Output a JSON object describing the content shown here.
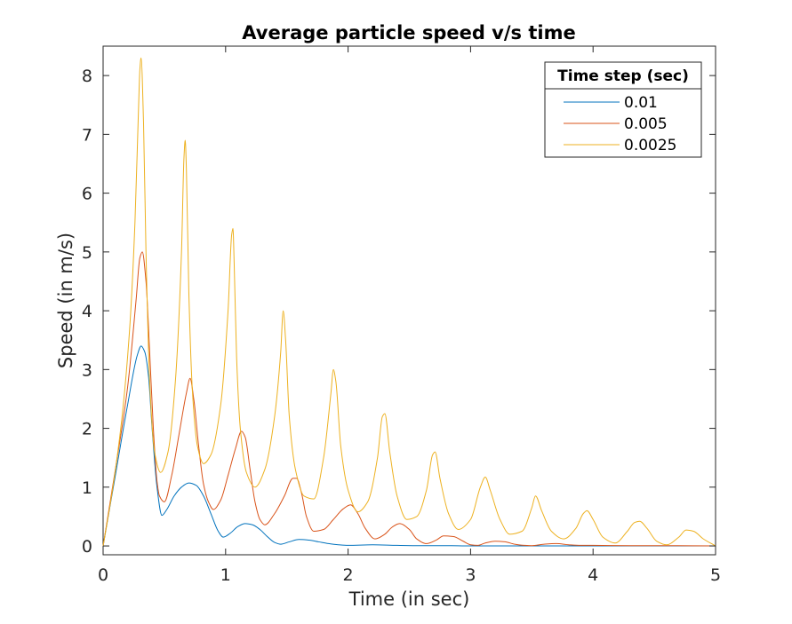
{
  "chart_data": {
    "type": "line",
    "title": "Average particle speed v/s time",
    "xlabel": "Time (in sec)",
    "ylabel": "Speed (in m/s)",
    "xlim": [
      0,
      5
    ],
    "ylim": [
      -0.15,
      8.5
    ],
    "xticks": [
      0,
      1,
      2,
      3,
      4,
      5
    ],
    "yticks": [
      0,
      1,
      2,
      3,
      4,
      5,
      6,
      7,
      8
    ],
    "xtick_labels": [
      "0",
      "1",
      "2",
      "3",
      "4",
      "5"
    ],
    "ytick_labels": [
      "0",
      "1",
      "2",
      "3",
      "4",
      "5",
      "6",
      "7",
      "8"
    ],
    "grid": false,
    "legend": {
      "title": "Time step (sec)",
      "placement": "top-right"
    },
    "series": [
      {
        "name": "0.01",
        "color": "#0072BD",
        "x": [
          0,
          0.1,
          0.2,
          0.28,
          0.31,
          0.34,
          0.37,
          0.4,
          0.44,
          0.48,
          0.52,
          0.58,
          0.64,
          0.7,
          0.76,
          0.82,
          0.88,
          0.94,
          0.98,
          1.04,
          1.1,
          1.16,
          1.22,
          1.28,
          1.34,
          1.4,
          1.45,
          1.52,
          1.6,
          1.68,
          1.76,
          1.84,
          1.92,
          2.0,
          2.2,
          2.4,
          2.6,
          2.8,
          3.0,
          3.5,
          4.0,
          5.0
        ],
        "y": [
          0,
          1.2,
          2.4,
          3.25,
          3.4,
          3.3,
          2.9,
          2.0,
          1.0,
          0.52,
          0.62,
          0.85,
          1.0,
          1.07,
          1.03,
          0.85,
          0.55,
          0.25,
          0.15,
          0.22,
          0.33,
          0.38,
          0.36,
          0.28,
          0.16,
          0.06,
          0.03,
          0.07,
          0.11,
          0.1,
          0.07,
          0.04,
          0.02,
          0.01,
          0.02,
          0.01,
          0.005,
          0.005,
          0,
          0,
          0,
          0
        ]
      },
      {
        "name": "0.005",
        "color": "#D95319",
        "x": [
          0,
          0.1,
          0.2,
          0.27,
          0.3,
          0.32,
          0.35,
          0.38,
          0.41,
          0.44,
          0.46,
          0.5,
          0.56,
          0.62,
          0.68,
          0.71,
          0.74,
          0.78,
          0.82,
          0.86,
          0.9,
          0.96,
          1.02,
          1.08,
          1.13,
          1.16,
          1.2,
          1.24,
          1.28,
          1.32,
          1.4,
          1.48,
          1.55,
          1.58,
          1.62,
          1.66,
          1.72,
          1.8,
          1.88,
          1.96,
          2.02,
          2.08,
          2.14,
          2.22,
          2.3,
          2.36,
          2.42,
          2.5,
          2.56,
          2.64,
          2.72,
          2.78,
          2.86,
          2.94,
          3.0,
          3.06,
          3.12,
          3.2,
          3.28,
          3.36,
          3.44,
          3.5,
          3.6,
          3.7,
          3.8,
          3.9,
          4.0,
          4.3,
          4.6,
          5.0
        ],
        "y": [
          0,
          1.3,
          2.7,
          4.2,
          4.9,
          5.0,
          4.5,
          3.3,
          2.0,
          1.1,
          0.85,
          0.75,
          1.2,
          1.9,
          2.6,
          2.85,
          2.5,
          1.7,
          1.05,
          0.75,
          0.62,
          0.78,
          1.2,
          1.65,
          1.95,
          1.85,
          1.3,
          0.75,
          0.45,
          0.36,
          0.55,
          0.85,
          1.15,
          1.15,
          0.9,
          0.5,
          0.25,
          0.28,
          0.45,
          0.63,
          0.7,
          0.55,
          0.3,
          0.12,
          0.2,
          0.32,
          0.38,
          0.28,
          0.12,
          0.04,
          0.1,
          0.17,
          0.16,
          0.08,
          0.02,
          0.01,
          0.05,
          0.08,
          0.07,
          0.03,
          0.01,
          0.005,
          0.03,
          0.04,
          0.02,
          0.01,
          0.01,
          0.005,
          0.005,
          0
        ]
      },
      {
        "name": "0.0025",
        "color": "#EDB120",
        "x": [
          0,
          0.08,
          0.16,
          0.22,
          0.26,
          0.29,
          0.3,
          0.31,
          0.33,
          0.35,
          0.38,
          0.42,
          0.47,
          0.53,
          0.59,
          0.64,
          0.66,
          0.67,
          0.68,
          0.7,
          0.73,
          0.77,
          0.82,
          0.88,
          0.96,
          1.02,
          1.05,
          1.06,
          1.07,
          1.09,
          1.12,
          1.17,
          1.24,
          1.32,
          1.4,
          1.45,
          1.47,
          1.49,
          1.52,
          1.57,
          1.64,
          1.72,
          1.8,
          1.86,
          1.88,
          1.9,
          1.94,
          2.0,
          2.08,
          2.16,
          2.24,
          2.28,
          2.3,
          2.34,
          2.4,
          2.48,
          2.56,
          2.64,
          2.69,
          2.71,
          2.75,
          2.82,
          2.9,
          3.0,
          3.08,
          3.12,
          3.16,
          3.24,
          3.32,
          3.42,
          3.5,
          3.53,
          3.58,
          3.66,
          3.76,
          3.86,
          3.92,
          3.95,
          4.0,
          4.08,
          4.18,
          4.28,
          4.34,
          4.38,
          4.44,
          4.52,
          4.6,
          4.7,
          4.76,
          4.82,
          4.9,
          5.0
        ],
        "y": [
          0,
          1.0,
          2.3,
          3.8,
          5.5,
          7.5,
          8.1,
          8.3,
          7.2,
          5.0,
          2.8,
          1.6,
          1.25,
          1.6,
          2.8,
          5.0,
          6.6,
          6.9,
          6.4,
          4.3,
          2.6,
          1.7,
          1.4,
          1.55,
          2.4,
          4.0,
          5.3,
          5.4,
          4.8,
          3.2,
          2.0,
          1.25,
          1.0,
          1.3,
          2.2,
          3.3,
          4.0,
          3.5,
          2.2,
          1.3,
          0.85,
          0.8,
          1.5,
          2.6,
          3.0,
          2.8,
          1.7,
          0.95,
          0.58,
          0.75,
          1.5,
          2.2,
          2.25,
          1.6,
          0.85,
          0.45,
          0.5,
          0.95,
          1.55,
          1.6,
          1.15,
          0.55,
          0.28,
          0.45,
          1.0,
          1.17,
          0.95,
          0.45,
          0.2,
          0.25,
          0.65,
          0.85,
          0.6,
          0.25,
          0.12,
          0.3,
          0.55,
          0.6,
          0.45,
          0.15,
          0.05,
          0.25,
          0.4,
          0.42,
          0.3,
          0.08,
          0.02,
          0.15,
          0.27,
          0.25,
          0.12,
          0
        ]
      }
    ]
  }
}
